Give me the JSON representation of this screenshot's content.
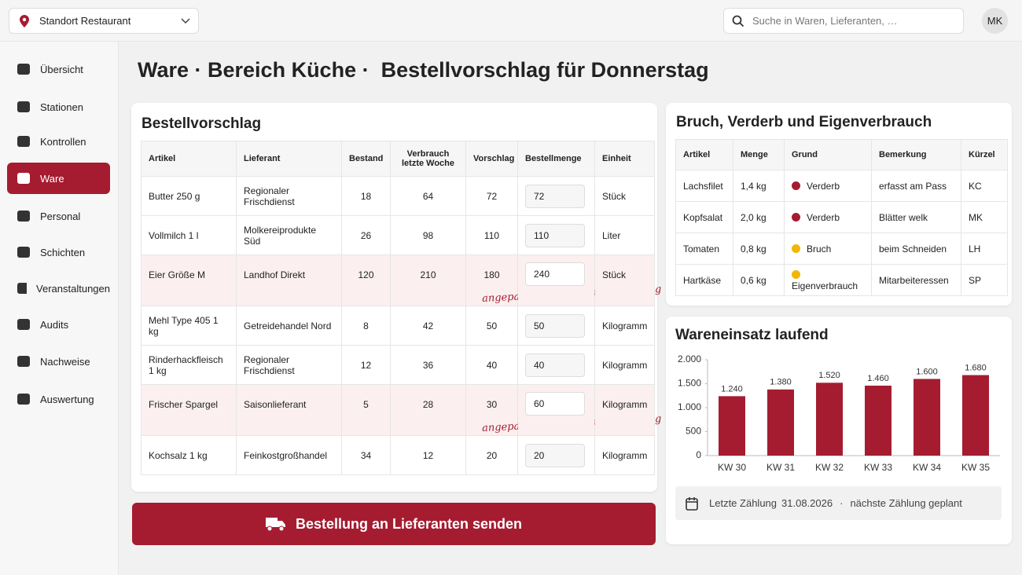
{
  "topbar": {
    "location": "Standort Restaurant",
    "search_placeholder": "Suche in Waren, Lieferanten, …",
    "avatar": "MK"
  },
  "nav": [
    {
      "label": "Übersicht"
    },
    {
      "label": "Stationen"
    },
    {
      "label": "Kontrollen"
    },
    {
      "label": "Ware",
      "active": true
    },
    {
      "label": "Personal"
    },
    {
      "label": "Schichten"
    },
    {
      "label": "Veranstaltungen"
    },
    {
      "label": "Audits"
    },
    {
      "label": "Nachweise"
    },
    {
      "label": "Auswertung"
    }
  ],
  "page_title": "Ware · Bereich Küche ·  Bestellvorschlag für Donnerstag",
  "order": {
    "title": "Bestellvorschlag",
    "columns": [
      "Artikel",
      "Lieferant",
      "Bestand",
      "Verbrauch letzte Woche",
      "Vorschlag",
      "Bestellmenge",
      "Einheit"
    ],
    "rows": [
      {
        "cells": [
          "Butter 250 g",
          "Regionaler Frischdienst",
          18,
          64,
          72,
          72,
          "Stück"
        ]
      },
      {
        "cells": [
          "Vollmilch 1 l",
          "Molkereiprodukte Süd",
          26,
          98,
          110,
          110,
          "Liter"
        ]
      },
      {
        "cells": [
          "Eier Größe M",
          "Landhof Direkt",
          120,
          210,
          180,
          240,
          "Stück"
        ],
        "note": "angepasst, Veranstaltung Samstag"
      },
      {
        "cells": [
          "Mehl Type 405 1 kg",
          "Getreidehandel Nord",
          8,
          42,
          50,
          50,
          "Kilogramm"
        ]
      },
      {
        "cells": [
          "Rinderhackfleisch 1 kg",
          "Regionaler Frischdienst",
          12,
          36,
          40,
          40,
          "Kilogramm"
        ]
      },
      {
        "cells": [
          "Frischer Spargel",
          "Saisonlieferant",
          5,
          28,
          30,
          60,
          "Kilogramm"
        ],
        "note": "angepasst, Veranstaltung Samstag"
      },
      {
        "cells": [
          "Kochsalz 1 kg",
          "Feinkostgroßhandel",
          34,
          12,
          20,
          20,
          "Kilogramm"
        ]
      }
    ]
  },
  "button": "Bestellung an Lieferanten senden",
  "waste": {
    "title": "Bruch, Verderb und Eigenverbrauch",
    "columns": [
      "Artikel",
      "Menge",
      "Grund",
      "Bemerkung",
      "Kürzel"
    ],
    "rows": [
      {
        "cells": [
          "Lachsfilet",
          "1,4 kg",
          "Verderb",
          "erfasst am Pass",
          "KC"
        ],
        "dot": "#a51c30"
      },
      {
        "cells": [
          "Kopfsalat",
          "2,0 kg",
          "Verderb",
          "Blätter welk",
          "MK"
        ],
        "dot": "#a51c30"
      },
      {
        "cells": [
          "Tomaten",
          "0,8 kg",
          "Bruch",
          "beim Schneiden",
          "LH"
        ],
        "dot": "#f2b705"
      },
      {
        "cells": [
          "Hartkäse",
          "0,6 kg",
          "Eigenverbrauch",
          "Mitarbeiteressen",
          "SP"
        ],
        "dot": "#f2b705"
      }
    ]
  },
  "chart_data": {
    "type": "bar",
    "title": "Wareneinsatz laufend",
    "categories": [
      "KW 30",
      "KW 31",
      "KW 32",
      "KW 33",
      "KW 34",
      "KW 35"
    ],
    "values": [
      1240,
      1380,
      1520,
      1460,
      1600,
      1680
    ],
    "value_labels": [
      "1.240",
      "1.380",
      "1.520",
      "1.460",
      "1.600",
      "1.680"
    ],
    "color": "#a51c30",
    "ylim": [
      0,
      2000
    ],
    "yticks": [
      0,
      500,
      {
        "value": 1000,
        "label": "1.000"
      },
      {
        "value": 1500,
        "label": "1.500"
      },
      {
        "value": 2000,
        "label": "2.000"
      }
    ],
    "grid": false
  },
  "footer": {
    "label": "Letzte Zählung",
    "date": "31.08.2026",
    "next": "nächste Zählung geplant"
  }
}
